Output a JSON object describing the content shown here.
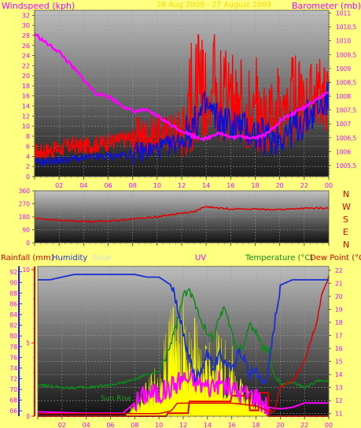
{
  "colors": {
    "background": "#ffff80",
    "wind": "#ff0000",
    "gust": "#1010d0",
    "barometer": "#ff00ff",
    "direction": "#e00000",
    "rain": "#e00000",
    "humidity": "#1a30d0",
    "solar": "#ffff00",
    "uv": "#ff00ff",
    "temperature": "#0b8a1a",
    "dewpoint": "#e00000",
    "axis_blue": "#2020ff"
  },
  "panel1": {
    "title": "26 Aug 2009 - 27 August 2009",
    "left_label": "Windspeed (kph)",
    "right_label": "Barometer (mb)"
  },
  "panel2": {
    "compass": [
      "N",
      "W",
      "S",
      "E",
      "N"
    ]
  },
  "panel3": {
    "rain_label": "Rainfall (mm)",
    "humidity_label": "Humidity",
    "solar_label": "Solar",
    "uv_label": "UV",
    "temp_label": "Temperature (°C)",
    "dew_label": "Dew Point (°C)",
    "sunrise_label": "Sun Rise"
  },
  "chart_data": [
    {
      "type": "line",
      "ylabel": "Windspeed (kph)",
      "y2label": "Barometer (mb)",
      "x_ticks": [
        "02",
        "04",
        "06",
        "08",
        "10",
        "12",
        "14",
        "16",
        "18",
        "20",
        "22",
        "00"
      ],
      "y_ticks": [
        "0",
        "2",
        "4",
        "6",
        "8",
        "10",
        "12",
        "14",
        "16",
        "18",
        "20",
        "22",
        "24",
        "26",
        "28",
        "30",
        "32"
      ],
      "y2_ticks": [
        "1005,5",
        "1006",
        "1006,5",
        "1007",
        "1007,5",
        "1008",
        "1008,5",
        "1009",
        "1009,5",
        "1010",
        "1010,5",
        "1011"
      ],
      "ylim": [
        0,
        33
      ],
      "y2lim": [
        1005.1,
        1011.1
      ],
      "series": [
        {
          "values": [
            [
              0,
              4.8
            ],
            [
              1,
              5.2
            ],
            [
              2,
              5.5
            ],
            [
              3,
              6.2
            ],
            [
              4,
              6.0
            ],
            [
              5,
              6.4
            ],
            [
              6,
              6.8
            ],
            [
              7,
              7.2
            ],
            [
              8,
              7.8
            ],
            [
              9,
              8.2
            ],
            [
              10,
              8.4
            ],
            [
              11,
              8.8
            ],
            [
              12,
              9.8
            ],
            [
              13,
              12.5
            ],
            [
              14,
              14.5
            ],
            [
              15,
              13.5
            ],
            [
              16,
              13.0
            ],
            [
              17,
              12.5
            ],
            [
              18,
              12.0
            ],
            [
              19,
              11.0
            ],
            [
              20,
              11.5
            ],
            [
              21,
              13.0
            ],
            [
              22,
              14.5
            ],
            [
              23,
              17.0
            ],
            [
              24,
              15.5
            ]
          ]
        },
        {
          "values": [
            [
              0,
              2.8
            ],
            [
              1,
              3.0
            ],
            [
              2,
              3.2
            ],
            [
              3,
              3.5
            ],
            [
              4,
              3.6
            ],
            [
              5,
              3.8
            ],
            [
              6,
              4.0
            ],
            [
              7,
              4.2
            ],
            [
              8,
              4.5
            ],
            [
              9,
              5.0
            ],
            [
              10,
              5.5
            ],
            [
              11,
              6.0
            ],
            [
              12,
              7.5
            ],
            [
              13,
              10.0
            ],
            [
              14,
              14.0
            ],
            [
              15,
              11.0
            ],
            [
              16,
              10.5
            ],
            [
              17,
              9.5
            ],
            [
              18,
              8.5
            ],
            [
              19,
              7.5
            ],
            [
              20,
              8.0
            ],
            [
              21,
              9.5
            ],
            [
              22,
              11.0
            ],
            [
              23,
              13.5
            ],
            [
              24,
              15.5
            ]
          ]
        },
        {
          "values": [
            [
              0,
              1010.25
            ],
            [
              1,
              1009.9
            ],
            [
              2,
              1009.6
            ],
            [
              3,
              1009.1
            ],
            [
              4,
              1008.6
            ],
            [
              5,
              1008.1
            ],
            [
              6,
              1008.0
            ],
            [
              7,
              1007.7
            ],
            [
              8,
              1007.45
            ],
            [
              9,
              1007.5
            ],
            [
              10,
              1007.3
            ],
            [
              11,
              1007.0
            ],
            [
              12,
              1006.75
            ],
            [
              13,
              1006.55
            ],
            [
              14,
              1006.45
            ],
            [
              15,
              1006.7
            ],
            [
              16,
              1006.5
            ],
            [
              17,
              1006.55
            ],
            [
              18,
              1006.5
            ],
            [
              19,
              1006.65
            ],
            [
              20,
              1007.1
            ],
            [
              21,
              1007.35
            ],
            [
              22,
              1007.6
            ],
            [
              23,
              1007.9
            ],
            [
              24,
              1008.15
            ]
          ]
        }
      ]
    },
    {
      "type": "line",
      "y_ticks": [
        "0",
        "90",
        "180",
        "270",
        "360"
      ],
      "ylim": [
        0,
        360
      ],
      "series": [
        {
          "values": [
            [
              0,
              170
            ],
            [
              2,
              155
            ],
            [
              4,
              148
            ],
            [
              6,
              150
            ],
            [
              8,
              165
            ],
            [
              10,
              180
            ],
            [
              12,
              205
            ],
            [
              13,
              215
            ],
            [
              14,
              250
            ],
            [
              15,
              240
            ],
            [
              16,
              235
            ],
            [
              18,
              232
            ],
            [
              20,
              230
            ],
            [
              22,
              238
            ],
            [
              24,
              240
            ]
          ]
        }
      ]
    },
    {
      "type": "line",
      "x_ticks": [
        "02",
        "04",
        "06",
        "08",
        "10",
        "12",
        "14",
        "16",
        "18",
        "20",
        "22",
        "00"
      ],
      "rain_ticks": [
        "0",
        "5",
        "10"
      ],
      "humidity_ticks": [
        "66",
        "68",
        "70",
        "72",
        "74",
        "76",
        "78",
        "80",
        "82",
        "84",
        "86",
        "88",
        "90",
        "92"
      ],
      "temp_ticks": [
        "11",
        "12",
        "13",
        "14",
        "15",
        "16",
        "17",
        "18",
        "19",
        "20",
        "21",
        "22"
      ],
      "rainlim": [
        0,
        10
      ],
      "humlim": [
        65,
        93
      ],
      "templim": [
        10.8,
        22.3
      ],
      "series": [
        {
          "values": [
            [
              0,
              90.5
            ],
            [
              1,
              90.5
            ],
            [
              2,
              91.0
            ],
            [
              3,
              91.5
            ],
            [
              4,
              91.5
            ],
            [
              5,
              91.5
            ],
            [
              6,
              91.5
            ],
            [
              7,
              91.5
            ],
            [
              8,
              91.5
            ],
            [
              9,
              91.0
            ],
            [
              10,
              91.0
            ],
            [
              11,
              89.5
            ],
            [
              11.5,
              86
            ],
            [
              12,
              80
            ],
            [
              12.5,
              76
            ],
            [
              13,
              72
            ],
            [
              13.5,
              74
            ],
            [
              14,
              77
            ],
            [
              14.5,
              74
            ],
            [
              15,
              76.5
            ],
            [
              16,
              73.5
            ],
            [
              16.5,
              77
            ],
            [
              17,
              76
            ],
            [
              17.5,
              72.5
            ],
            [
              18,
              74
            ],
            [
              18.5,
              71
            ],
            [
              19,
              73
            ],
            [
              19.5,
              82
            ],
            [
              20,
              89.5
            ],
            [
              21,
              90.5
            ],
            [
              22,
              90.5
            ],
            [
              23,
              90.5
            ],
            [
              24,
              90.5
            ]
          ]
        },
        {
          "values": [
            [
              0,
              13.2
            ],
            [
              2,
              13.0
            ],
            [
              4,
              13.0
            ],
            [
              6,
              13.2
            ],
            [
              8,
              13.6
            ],
            [
              9,
              14.0
            ],
            [
              10,
              14.2
            ],
            [
              10.5,
              15.2
            ],
            [
              11,
              16.5
            ],
            [
              11.5,
              18.0
            ],
            [
              12,
              20.0
            ],
            [
              12.5,
              20.4
            ],
            [
              13,
              19.5
            ],
            [
              13.5,
              18.2
            ],
            [
              14,
              17.0
            ],
            [
              14.5,
              16.8
            ],
            [
              15,
              18.5
            ],
            [
              15.5,
              19.2
            ],
            [
              16,
              17.0
            ],
            [
              16.5,
              16.0
            ],
            [
              17,
              16.2
            ],
            [
              17.5,
              18.0
            ],
            [
              18,
              17.2
            ],
            [
              18.5,
              16.2
            ],
            [
              19,
              16.0
            ],
            [
              19.5,
              14.0
            ],
            [
              20,
              13.2
            ],
            [
              21,
              13.4
            ],
            [
              22,
              13.0
            ],
            [
              23,
              13.5
            ],
            [
              24,
              13.5
            ]
          ]
        },
        {
          "values": [
            [
              0,
              11.0
            ],
            [
              8,
              11.0
            ],
            [
              10,
              11.0
            ],
            [
              11,
              11.2
            ],
            [
              11.5,
              11.8
            ],
            [
              12,
              11.8
            ],
            [
              14,
              11.8
            ],
            [
              15,
              11.8
            ],
            [
              16,
              11.8
            ],
            [
              18,
              11.6
            ],
            [
              19,
              11.2
            ],
            [
              19.5,
              11.0
            ],
            [
              20,
              13.2
            ],
            [
              21,
              13.4
            ],
            [
              22,
              15.0
            ],
            [
              23,
              18.0
            ],
            [
              23.5,
              20.5
            ],
            [
              24,
              21.5
            ]
          ]
        },
        {
          "values": [
            [
              0,
              0.3
            ],
            [
              4,
              0.2
            ],
            [
              7,
              0.2
            ],
            [
              9,
              1.6
            ],
            [
              10,
              1.5
            ],
            [
              11,
              2.0
            ],
            [
              12,
              2.6
            ],
            [
              13,
              2.4
            ],
            [
              14,
              2.0
            ],
            [
              15,
              2.3
            ],
            [
              16,
              1.8
            ],
            [
              17,
              1.5
            ],
            [
              18,
              1.4
            ],
            [
              19,
              0.6
            ],
            [
              20,
              0.5
            ],
            [
              21,
              0.6
            ],
            [
              22,
              0.9
            ],
            [
              23,
              0.9
            ],
            [
              24,
              0.9
            ]
          ]
        },
        {
          "values": [
            [
              7.2,
              0
            ],
            [
              8,
              0.7
            ],
            [
              9,
              1.6
            ],
            [
              10,
              2.5
            ],
            [
              11,
              4.8
            ],
            [
              12,
              5.6
            ],
            [
              13,
              4.4
            ],
            [
              14,
              3.0
            ],
            [
              14.5,
              4.2
            ],
            [
              15,
              3.6
            ],
            [
              16,
              3.3
            ],
            [
              16.5,
              2.4
            ],
            [
              17,
              1.8
            ],
            [
              17.5,
              1.0
            ],
            [
              18,
              1.2
            ],
            [
              18.6,
              0.6
            ],
            [
              19,
              0
            ]
          ]
        },
        {
          "values": [
            [
              0,
              0
            ],
            [
              10.6,
              0
            ],
            [
              10.7,
              0.2
            ],
            [
              12.4,
              0.2
            ],
            [
              12.5,
              1.0
            ],
            [
              15.9,
              1.0
            ],
            [
              16.0,
              1.4
            ],
            [
              17.4,
              1.4
            ],
            [
              17.5,
              0.4
            ],
            [
              18.2,
              0.4
            ],
            [
              18.3,
              1.6
            ],
            [
              19.0,
              1.6
            ],
            [
              19.1,
              0
            ],
            [
              24,
              0
            ]
          ]
        }
      ]
    }
  ]
}
